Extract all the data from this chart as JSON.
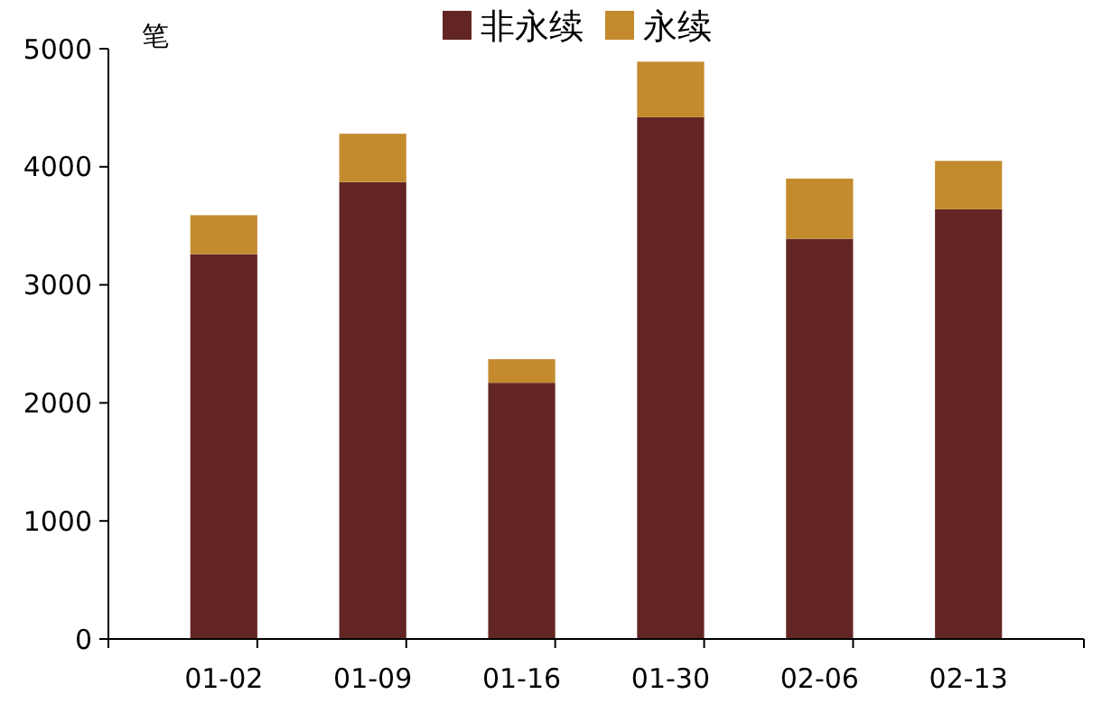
{
  "chart_data": {
    "type": "bar",
    "stacked": true,
    "ylabel": "笔",
    "categories": [
      "01-02",
      "01-09",
      "01-16",
      "01-30",
      "02-06",
      "02-13"
    ],
    "series": [
      {
        "name": "非永续",
        "color": "#632523",
        "values": [
          3260,
          3870,
          2170,
          4420,
          3390,
          3640
        ]
      },
      {
        "name": "永续",
        "color": "#c48a2e",
        "values": [
          330,
          410,
          200,
          470,
          510,
          410
        ]
      }
    ],
    "ylim": [
      0,
      5000
    ],
    "yticks": [
      0,
      1000,
      2000,
      3000,
      4000,
      5000
    ],
    "grid": false,
    "legend": "top"
  }
}
